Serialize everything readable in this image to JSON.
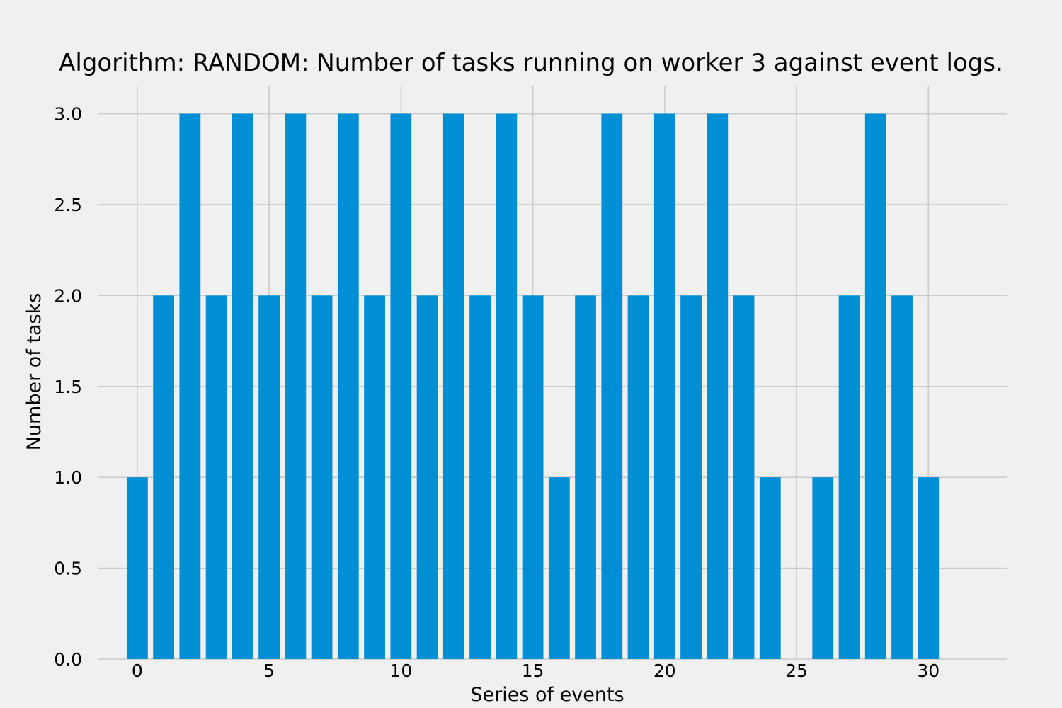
{
  "chart_data": {
    "type": "bar",
    "title": "Algorithm: RANDOM: Number of tasks running on worker 3 against event logs.",
    "xlabel": "Series of events",
    "ylabel": "Number of tasks",
    "x": [
      0,
      1,
      2,
      3,
      4,
      5,
      6,
      7,
      8,
      9,
      10,
      11,
      12,
      13,
      14,
      15,
      16,
      17,
      18,
      19,
      20,
      21,
      22,
      23,
      24,
      25,
      26,
      27,
      28,
      29,
      30
    ],
    "values": [
      1,
      2,
      3,
      2,
      3,
      2,
      3,
      2,
      3,
      2,
      3,
      2,
      3,
      2,
      3,
      2,
      1,
      2,
      3,
      2,
      3,
      2,
      3,
      2,
      1,
      0,
      1,
      2,
      3,
      2,
      1
    ],
    "xlim": [
      -1.5,
      33
    ],
    "ylim": [
      0,
      3.15
    ],
    "xticks": [
      0,
      5,
      10,
      15,
      20,
      25,
      30
    ],
    "xtick_labels": [
      "0",
      "5",
      "10",
      "15",
      "20",
      "25",
      "30"
    ],
    "yticks": [
      0.0,
      0.5,
      1.0,
      1.5,
      2.0,
      2.5,
      3.0
    ],
    "ytick_labels": [
      "0.0",
      "0.5",
      "1.0",
      "1.5",
      "2.0",
      "2.5",
      "3.0"
    ],
    "bar_color": "#008fd5",
    "grid": true,
    "background_color": "#f0f0f0"
  }
}
